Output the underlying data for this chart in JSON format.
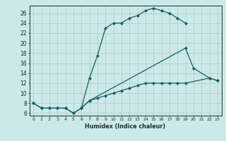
{
  "title": "",
  "xlabel": "Humidex (Indice chaleur)",
  "background_color": "#cce8e8",
  "grid_color": "#aacccc",
  "line_color": "#1a5f5f",
  "xlim": [
    -0.5,
    23.5
  ],
  "ylim": [
    5.5,
    27.5
  ],
  "yticks": [
    6,
    8,
    10,
    12,
    14,
    16,
    18,
    20,
    22,
    24,
    26
  ],
  "xticks": [
    0,
    1,
    2,
    3,
    4,
    5,
    6,
    7,
    8,
    9,
    10,
    11,
    12,
    13,
    14,
    15,
    16,
    17,
    18,
    19,
    20,
    21,
    22,
    23
  ],
  "series": [
    {
      "x": [
        0,
        1,
        2,
        3,
        4,
        5,
        6,
        7,
        8,
        9,
        10,
        11,
        12,
        13,
        14,
        15,
        16,
        17,
        18,
        19
      ],
      "y": [
        8,
        7,
        7,
        7,
        7,
        6,
        7,
        13,
        17.5,
        23,
        24,
        24,
        25,
        25.5,
        26.5,
        27,
        26.5,
        26,
        25,
        24
      ]
    },
    {
      "x": [
        0,
        1,
        2,
        3,
        4,
        5,
        6,
        7,
        19,
        20,
        22,
        23
      ],
      "y": [
        8,
        7,
        7,
        7,
        7,
        6,
        7,
        8.5,
        19,
        15,
        13,
        12.5
      ]
    },
    {
      "x": [
        6,
        7,
        8,
        9,
        10,
        11,
        12,
        13,
        14,
        15,
        16,
        17,
        18,
        19,
        22,
        23
      ],
      "y": [
        7,
        8.5,
        9,
        9.5,
        10,
        10.5,
        11,
        11.5,
        12,
        12,
        12,
        12,
        12,
        12,
        13,
        12.5
      ]
    }
  ]
}
